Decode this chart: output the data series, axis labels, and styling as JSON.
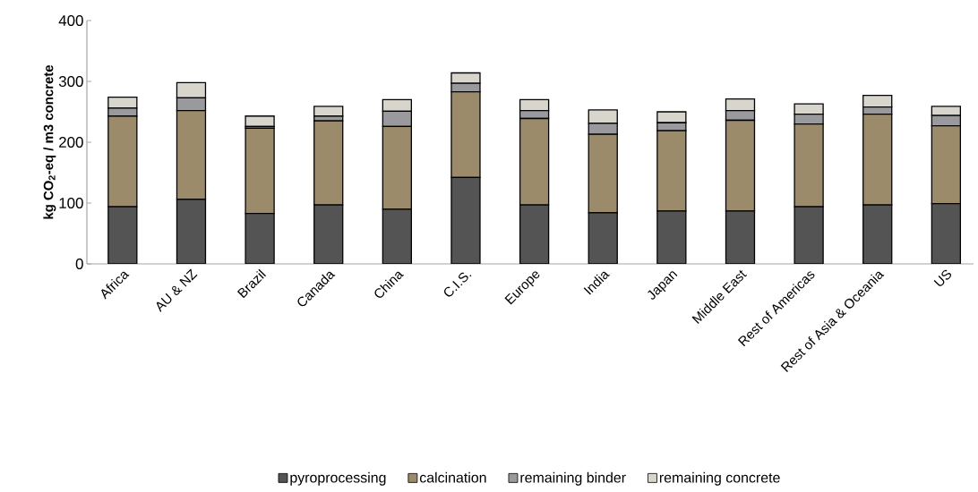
{
  "chart_data": {
    "type": "bar",
    "stacked": true,
    "ylabel": "kg CO$_{2}$-eq / m3 concrete",
    "categories": [
      "Africa",
      "AU & NZ",
      "Brazil",
      "Canada",
      "China",
      "C.I.S.",
      "Europe",
      "India",
      "Japan",
      "Middle East",
      "Rest of Americas",
      "Rest of Asia & Oceania",
      "US"
    ],
    "series": [
      {
        "name": "pyroprocessing",
        "color": "#545454",
        "values": [
          94,
          106,
          83,
          97,
          90,
          142,
          97,
          84,
          87,
          87,
          94,
          97,
          99
        ]
      },
      {
        "name": "calcination",
        "color": "#9c8b6b",
        "values": [
          149,
          146,
          140,
          138,
          136,
          141,
          142,
          129,
          132,
          149,
          136,
          149,
          128
        ]
      },
      {
        "name": "remaining binder",
        "color": "#9a9a9e",
        "values": [
          13,
          21,
          3,
          8,
          25,
          14,
          13,
          18,
          13,
          16,
          16,
          12,
          17
        ]
      },
      {
        "name": "remaining concrete",
        "color": "#d8d6cc",
        "values": [
          18,
          25,
          17,
          16,
          19,
          17,
          18,
          22,
          18,
          19,
          17,
          19,
          15
        ]
      }
    ],
    "ylim": [
      0,
      400
    ],
    "yticks": [
      0,
      100,
      200,
      300,
      400
    ],
    "grid": false,
    "legend": "bottom"
  }
}
